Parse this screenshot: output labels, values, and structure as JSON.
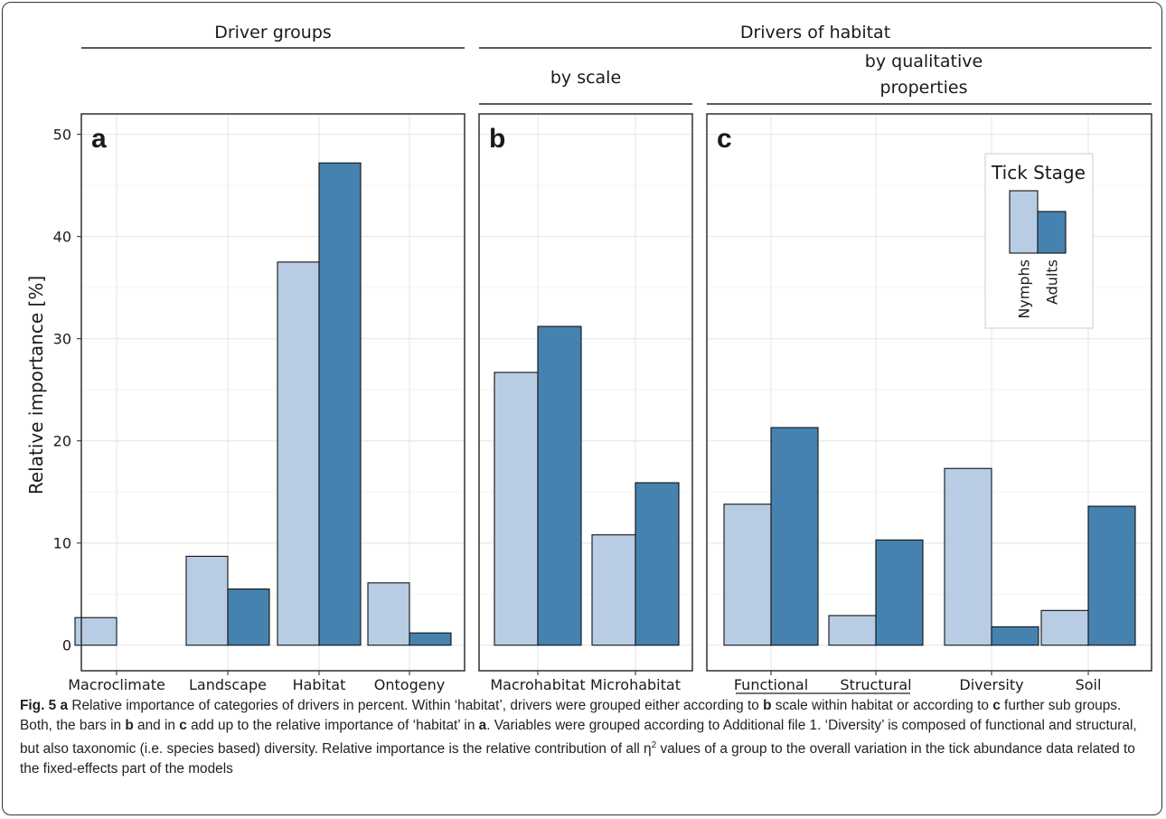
{
  "headers": {
    "driver_groups": "Driver groups",
    "drivers_of_habitat": "Drivers of habitat",
    "by_scale": "by scale",
    "by_qualitative_line1": "by qualitative",
    "by_qualitative_line2": "properties",
    "properties_sub": "properties"
  },
  "chart_data": {
    "type": "bar",
    "ylabel": "Relative importance [%]",
    "ylim": [
      -2.5,
      52
    ],
    "yticks": [
      0,
      10,
      20,
      30,
      40,
      50
    ],
    "ytick_labels": [
      "0",
      "10",
      "20",
      "30",
      "40",
      "50"
    ],
    "colors": {
      "Nymphs": "#b8cde4",
      "Adults": "#4682b0"
    },
    "legend": {
      "title": "Tick Stage",
      "entries": [
        "Nymphs",
        "Adults"
      ],
      "placement": "top-right of panel c"
    },
    "panels": [
      {
        "letter": "a",
        "categories": [
          "Macroclimate",
          "Landscape",
          "Habitat",
          "Ontogeny"
        ],
        "series": [
          {
            "name": "Nymphs",
            "values": [
              2.7,
              8.7,
              37.5,
              6.1
            ]
          },
          {
            "name": "Adults",
            "values": [
              0,
              5.5,
              47.2,
              1.2
            ]
          }
        ]
      },
      {
        "letter": "b",
        "categories": [
          "Macrohabitat",
          "Microhabitat"
        ],
        "series": [
          {
            "name": "Nymphs",
            "values": [
              26.7,
              10.8
            ]
          },
          {
            "name": "Adults",
            "values": [
              31.2,
              15.9
            ]
          }
        ]
      },
      {
        "letter": "c",
        "categories": [
          "Functional",
          "Structural",
          "Diversity",
          "Soil"
        ],
        "series": [
          {
            "name": "Nymphs",
            "values": [
              13.8,
              2.9,
              17.3,
              3.4
            ]
          },
          {
            "name": "Adults",
            "values": [
              21.3,
              10.3,
              1.8,
              13.6
            ]
          }
        ]
      }
    ]
  },
  "caption": {
    "fig_label": "Fig. 5",
    "parts": [
      {
        "t": "Fig. 5",
        "b": true
      },
      {
        "t": " "
      },
      {
        "t": "a",
        "b": true
      },
      {
        "t": " Relative importance of categories of drivers in percent. Within ‘habitat’, drivers were grouped either according to "
      },
      {
        "t": "b",
        "b": true
      },
      {
        "t": " scale within habitat or according to "
      },
      {
        "t": "c",
        "b": true
      },
      {
        "t": " further sub groups. Both, the bars in "
      },
      {
        "t": "b",
        "b": true
      },
      {
        "t": " and in "
      },
      {
        "t": "c",
        "b": true
      },
      {
        "t": " add up to the relative importance of ‘habitat’ in "
      },
      {
        "t": "a",
        "b": true
      },
      {
        "t": ". Variables were grouped according to Additional file 1. ‘Diversity’ is composed of functional and structural, but also taxonomic (i.e. species based) diversity. Relative importance is the relative contribution of all η"
      },
      {
        "t": "2",
        "sup": true
      },
      {
        "t": " values of a group to the overall variation in the tick abundance data related to the fixed-effects part of the models"
      }
    ]
  }
}
